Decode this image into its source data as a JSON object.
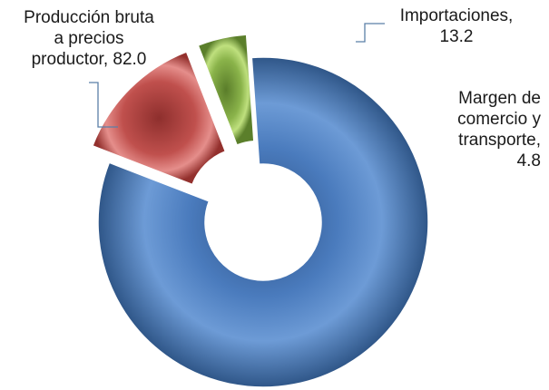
{
  "chart_data": {
    "type": "pie",
    "variant": "donut-exploded-3d",
    "title": "",
    "categories": [
      "Producción bruta a precios productor",
      "Importaciones",
      "Margen de comercio y transporte"
    ],
    "values": [
      82.0,
      13.2,
      4.8
    ],
    "colors": [
      "#4a7bbd",
      "#c0504d",
      "#8ab34a"
    ],
    "legend": "none",
    "data_labels": [
      {
        "lines": [
          "Producción bruta",
          "a precios",
          "productor, 82.0"
        ]
      },
      {
        "lines": [
          "Importaciones,",
          "13.2"
        ]
      },
      {
        "lines": [
          "Margen de",
          "comercio y",
          "transporte,",
          "4.8"
        ]
      }
    ]
  }
}
